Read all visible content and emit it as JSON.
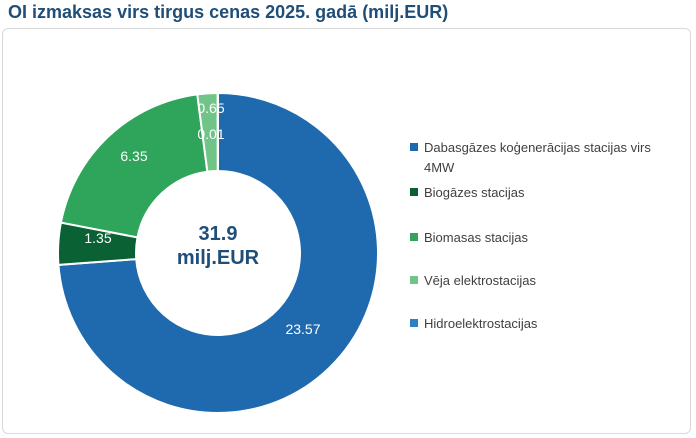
{
  "title": "OI izmaksas virs tirgus cenas 2025. gadā (milj.EUR)",
  "center_label": {
    "value": "31.9",
    "unit": "milj.EUR"
  },
  "chart_data": {
    "type": "pie",
    "style": "donut",
    "title": "OI izmaksas virs tirgus cenas 2025. gadā (milj.EUR)",
    "total": 31.9,
    "legend_position": "right",
    "slices": [
      {
        "label": "Dabasgāzes koģenerācijas stacijas virs 4MW",
        "value": 23.57,
        "color": "#1F69AE"
      },
      {
        "label": "Biogāzes stacijas",
        "value": 1.35,
        "color": "#0A6134"
      },
      {
        "label": "Biomasas stacijas",
        "value": 6.35,
        "color": "#2EA55B"
      },
      {
        "label": "Vēja elektrostacijas",
        "value": 0.65,
        "color": "#70C488"
      },
      {
        "label": "Hidroelektrostacijas",
        "value": 0.01,
        "color": "#2F80C3"
      }
    ]
  }
}
